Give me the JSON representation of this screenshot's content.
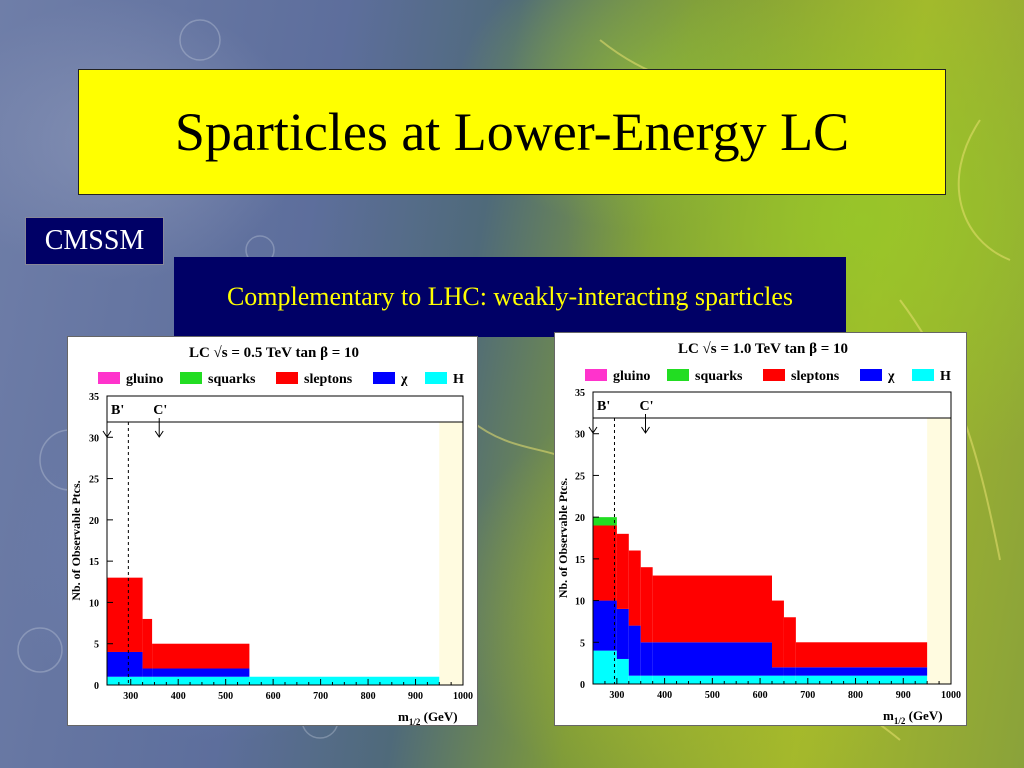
{
  "slide": {
    "title": "Sparticles at Lower-Energy LC",
    "tag": "CMSSM",
    "subtitle": "Complementary to LHC: weakly-interacting sparticles"
  },
  "colors": {
    "gluino": "#ff33cc",
    "squarks": "#22dd22",
    "sleptons": "#ff0000",
    "chi": "#0000ff",
    "H": "#00ffff",
    "excluded_band": "#fffbe0"
  },
  "chart_data": [
    {
      "type": "area",
      "title": "LC √s = 0.5 TeV  tan β = 10",
      "legend": [
        "gluino",
        "squarks",
        "sleptons",
        "χ",
        "H"
      ],
      "xlabel": "m",
      "xlabel_sub": "1/2",
      "xlabel_unit": "(GeV)",
      "ylabel": "Nb. of Observable Ptcs.",
      "xlim": [
        250,
        1000
      ],
      "ylim": [
        0,
        35
      ],
      "xticks": [
        300,
        400,
        500,
        600,
        700,
        800,
        900,
        1000
      ],
      "yticks": [
        0,
        5,
        10,
        15,
        20,
        25,
        30,
        35
      ],
      "markers": [
        {
          "label": "B'",
          "x": 250
        },
        {
          "label": "C'",
          "x": 360
        }
      ],
      "dashed_x": 295,
      "excluded_from_x": 950,
      "stacked_steps": [
        {
          "x0": 250,
          "x1": 325,
          "H": 1,
          "chi": 3,
          "sleptons": 9,
          "squarks": 0,
          "gluino": 0
        },
        {
          "x0": 325,
          "x1": 345,
          "H": 1,
          "chi": 1,
          "sleptons": 6,
          "squarks": 0,
          "gluino": 0
        },
        {
          "x0": 345,
          "x1": 550,
          "H": 1,
          "chi": 1,
          "sleptons": 3,
          "squarks": 0,
          "gluino": 0
        },
        {
          "x0": 550,
          "x1": 950,
          "H": 1,
          "chi": 0,
          "sleptons": 0,
          "squarks": 0,
          "gluino": 0
        }
      ]
    },
    {
      "type": "area",
      "title": "LC √s = 1.0 TeV  tan β = 10",
      "legend": [
        "gluino",
        "squarks",
        "sleptons",
        "χ",
        "H"
      ],
      "xlabel": "m",
      "xlabel_sub": "1/2",
      "xlabel_unit": "(GeV)",
      "ylabel": "Nb. of Observable Ptcs.",
      "xlim": [
        250,
        1000
      ],
      "ylim": [
        0,
        35
      ],
      "xticks": [
        300,
        400,
        500,
        600,
        700,
        800,
        900,
        1000
      ],
      "yticks": [
        0,
        5,
        10,
        15,
        20,
        25,
        30,
        35
      ],
      "markers": [
        {
          "label": "B'",
          "x": 250
        },
        {
          "label": "C'",
          "x": 360
        }
      ],
      "dashed_x": 295,
      "excluded_from_x": 950,
      "stacked_steps": [
        {
          "x0": 250,
          "x1": 300,
          "H": 4,
          "chi": 6,
          "sleptons": 9,
          "squarks": 1,
          "gluino": 0
        },
        {
          "x0": 300,
          "x1": 325,
          "H": 3,
          "chi": 6,
          "sleptons": 9,
          "squarks": 0,
          "gluino": 0
        },
        {
          "x0": 325,
          "x1": 350,
          "H": 1,
          "chi": 6,
          "sleptons": 9,
          "squarks": 0,
          "gluino": 0
        },
        {
          "x0": 350,
          "x1": 375,
          "H": 1,
          "chi": 4,
          "sleptons": 9,
          "squarks": 0,
          "gluino": 0
        },
        {
          "x0": 375,
          "x1": 625,
          "H": 1,
          "chi": 4,
          "sleptons": 8,
          "squarks": 0,
          "gluino": 0
        },
        {
          "x0": 625,
          "x1": 650,
          "H": 1,
          "chi": 1,
          "sleptons": 8,
          "squarks": 0,
          "gluino": 0
        },
        {
          "x0": 650,
          "x1": 675,
          "H": 1,
          "chi": 1,
          "sleptons": 6,
          "squarks": 0,
          "gluino": 0
        },
        {
          "x0": 675,
          "x1": 950,
          "H": 1,
          "chi": 1,
          "sleptons": 3,
          "squarks": 0,
          "gluino": 0
        }
      ]
    }
  ]
}
